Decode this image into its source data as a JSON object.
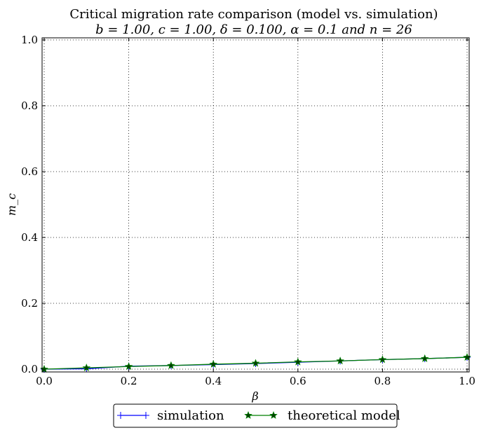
{
  "chart_data": {
    "type": "line",
    "title": "Critical migration rate comparison (model vs. simulation)",
    "subtitle": "b = 1.00, c = 1.00, δ = 0.100, α = 0.1 and n = 26",
    "xlabel": "β",
    "ylabel": "m_c",
    "xlim": [
      0.0,
      1.0
    ],
    "ylim": [
      0.0,
      1.0
    ],
    "xticks": [
      "0.0",
      "0.2",
      "0.4",
      "0.6",
      "0.8",
      "1.0"
    ],
    "yticks": [
      "0.0",
      "0.2",
      "0.4",
      "0.6",
      "0.8",
      "1.0"
    ],
    "grid": true,
    "legend_position": "bottom-center",
    "series": [
      {
        "name": "simulation",
        "color": "#0000ff",
        "marker": "plus",
        "x": [
          0.0,
          0.1,
          0.2,
          0.3,
          0.4,
          0.5,
          0.6,
          0.7,
          0.8,
          0.9,
          1.0
        ],
        "y": [
          0.0,
          0.001,
          0.009,
          0.011,
          0.014,
          0.017,
          0.021,
          0.025,
          0.029,
          0.032,
          0.036
        ]
      },
      {
        "name": "theoretical model",
        "color": "#007f00",
        "marker": "star",
        "x": [
          0.0,
          0.1,
          0.2,
          0.3,
          0.4,
          0.5,
          0.6,
          0.7,
          0.8,
          0.9,
          1.0
        ],
        "y": [
          0.0,
          0.004,
          0.008,
          0.011,
          0.015,
          0.018,
          0.022,
          0.025,
          0.029,
          0.032,
          0.036
        ]
      }
    ]
  }
}
